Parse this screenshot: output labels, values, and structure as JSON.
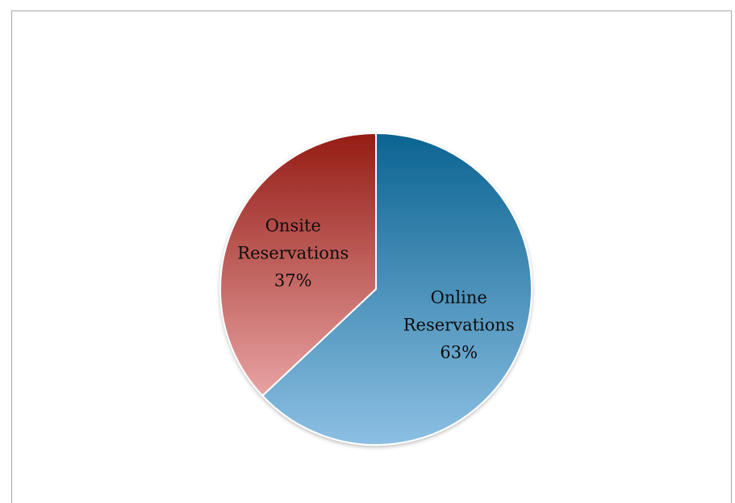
{
  "chart_data": {
    "type": "pie",
    "title": "",
    "slices": [
      {
        "label_lines": [
          "Online",
          "Reservations"
        ],
        "value": 63,
        "value_text": "63%",
        "color_top": "#0b6491",
        "color_bottom": "#8cbfe3"
      },
      {
        "label_lines": [
          "Onsite",
          "Reservations"
        ],
        "value": 37,
        "value_text": "37%",
        "color_top": "#951c14",
        "color_bottom": "#e8a3a3"
      }
    ],
    "start_angle_deg": 0,
    "direction": "clockwise",
    "legend": "none"
  }
}
